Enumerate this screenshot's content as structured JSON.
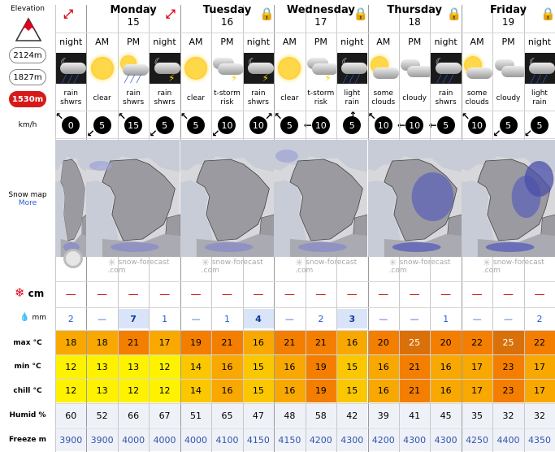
{
  "labels": {
    "elevation": "Elevation",
    "elev_options": [
      "2124m",
      "1827m",
      "1530m"
    ],
    "wind_unit": "km/h",
    "snow_map": "Snow map",
    "more": "More",
    "snow": "cm",
    "rain": "mm",
    "max": "max °C",
    "min": "min °C",
    "chill": "chill °C",
    "humid": "Humid %",
    "freeze": "Freeze m"
  },
  "brand_text": "snow-forecast\n.com",
  "days": [
    {
      "name": "Monday",
      "num": "15"
    },
    {
      "name": "Tuesday",
      "num": "16"
    },
    {
      "name": "Wednesday",
      "num": "17"
    },
    {
      "name": "Thursday",
      "num": "18"
    },
    {
      "name": "Friday",
      "num": "19"
    }
  ],
  "columns": [
    {
      "period": "night",
      "icon": "night-cloud-rain-icon",
      "text": "rain shwrs",
      "wind": "0",
      "dir": "nw",
      "snow": "—",
      "rain": "2",
      "rain_bold": false,
      "max": "18",
      "min": "12",
      "chill": "12",
      "hum": "60",
      "frz": "3900"
    },
    {
      "period": "AM",
      "icon": "sun-icon",
      "text": "clear",
      "wind": "5",
      "dir": "sw",
      "snow": "—",
      "rain": "—",
      "rain_bold": false,
      "max": "18",
      "min": "13",
      "chill": "13",
      "hum": "52",
      "frz": "3900"
    },
    {
      "period": "PM",
      "icon": "sun-cloud-rain-icon",
      "text": "rain shwrs",
      "wind": "15",
      "dir": "nw",
      "snow": "—",
      "rain": "7",
      "rain_bold": true,
      "max": "21",
      "min": "13",
      "chill": "12",
      "hum": "66",
      "frz": "4000"
    },
    {
      "period": "night",
      "icon": "night-storm-icon",
      "text": "rain shwrs",
      "wind": "5",
      "dir": "sw",
      "snow": "—",
      "rain": "1",
      "rain_bold": false,
      "max": "17",
      "min": "12",
      "chill": "12",
      "hum": "67",
      "frz": "4000"
    },
    {
      "period": "AM",
      "icon": "sun-icon",
      "text": "clear",
      "wind": "5",
      "dir": "nw",
      "snow": "—",
      "rain": "—",
      "rain_bold": false,
      "max": "19",
      "min": "14",
      "chill": "14",
      "hum": "51",
      "frz": "4000"
    },
    {
      "period": "PM",
      "icon": "cloud-storm-icon",
      "text": "t-storm risk",
      "wind": "10",
      "dir": "sw",
      "snow": "—",
      "rain": "1",
      "rain_bold": false,
      "max": "21",
      "min": "16",
      "chill": "16",
      "hum": "65",
      "frz": "4100"
    },
    {
      "period": "night",
      "icon": "night-storm-icon",
      "text": "rain shwrs",
      "wind": "10",
      "dir": "ne",
      "snow": "—",
      "rain": "4",
      "rain_bold": true,
      "max": "16",
      "min": "15",
      "chill": "15",
      "hum": "47",
      "frz": "4150"
    },
    {
      "period": "AM",
      "icon": "sun-icon",
      "text": "clear",
      "wind": "5",
      "dir": "nw",
      "snow": "—",
      "rain": "—",
      "rain_bold": false,
      "max": "21",
      "min": "16",
      "chill": "16",
      "hum": "48",
      "frz": "4150"
    },
    {
      "period": "PM",
      "icon": "cloud-storm-icon",
      "text": "t-storm risk",
      "wind": "10",
      "dir": "w",
      "snow": "—",
      "rain": "2",
      "rain_bold": false,
      "max": "21",
      "min": "19",
      "chill": "19",
      "hum": "58",
      "frz": "4200"
    },
    {
      "period": "night",
      "icon": "night-cloud-rain-icon",
      "text": "light rain",
      "wind": "5",
      "dir": "n",
      "snow": "—",
      "rain": "3",
      "rain_bold": true,
      "max": "16",
      "min": "15",
      "chill": "15",
      "hum": "42",
      "frz": "4300"
    },
    {
      "period": "AM",
      "icon": "sun-cloud-icon",
      "text": "some clouds",
      "wind": "10",
      "dir": "nw",
      "snow": "—",
      "rain": "—",
      "rain_bold": false,
      "max": "20",
      "min": "16",
      "chill": "16",
      "hum": "39",
      "frz": "4200"
    },
    {
      "period": "PM",
      "icon": "cloud-icon",
      "text": "cloudy",
      "wind": "10",
      "dir": "w",
      "snow": "—",
      "rain": "—",
      "rain_bold": false,
      "max": "25",
      "min": "21",
      "chill": "21",
      "hum": "41",
      "frz": "4300"
    },
    {
      "period": "night",
      "icon": "night-cloud-rain-icon",
      "text": "rain shwrs",
      "wind": "5",
      "dir": "w",
      "snow": "—",
      "rain": "1",
      "rain_bold": false,
      "max": "20",
      "min": "16",
      "chill": "16",
      "hum": "45",
      "frz": "4300"
    },
    {
      "period": "AM",
      "icon": "sun-cloud-icon",
      "text": "some clouds",
      "wind": "10",
      "dir": "nw",
      "snow": "—",
      "rain": "—",
      "rain_bold": false,
      "max": "22",
      "min": "17",
      "chill": "17",
      "hum": "35",
      "frz": "4250"
    },
    {
      "period": "PM",
      "icon": "cloud-icon",
      "text": "cloudy",
      "wind": "5",
      "dir": "sw",
      "snow": "—",
      "rain": "—",
      "rain_bold": false,
      "max": "25",
      "min": "23",
      "chill": "23",
      "hum": "32",
      "frz": "4400"
    },
    {
      "period": "night",
      "icon": "night-cloud-rain-icon",
      "text": "light rain",
      "wind": "5",
      "dir": "sw",
      "snow": "—",
      "rain": "2",
      "rain_bold": false,
      "max": "22",
      "min": "17",
      "chill": "17",
      "hum": "32",
      "frz": "4350"
    }
  ],
  "colors": {
    "hot": "#f47e00",
    "warm": "#f8a800",
    "mild": "#fbc700",
    "cool": "#fff200",
    "very_hot": "#d9700a",
    "freeze": "#3355aa",
    "accent": "#d61a1a"
  }
}
